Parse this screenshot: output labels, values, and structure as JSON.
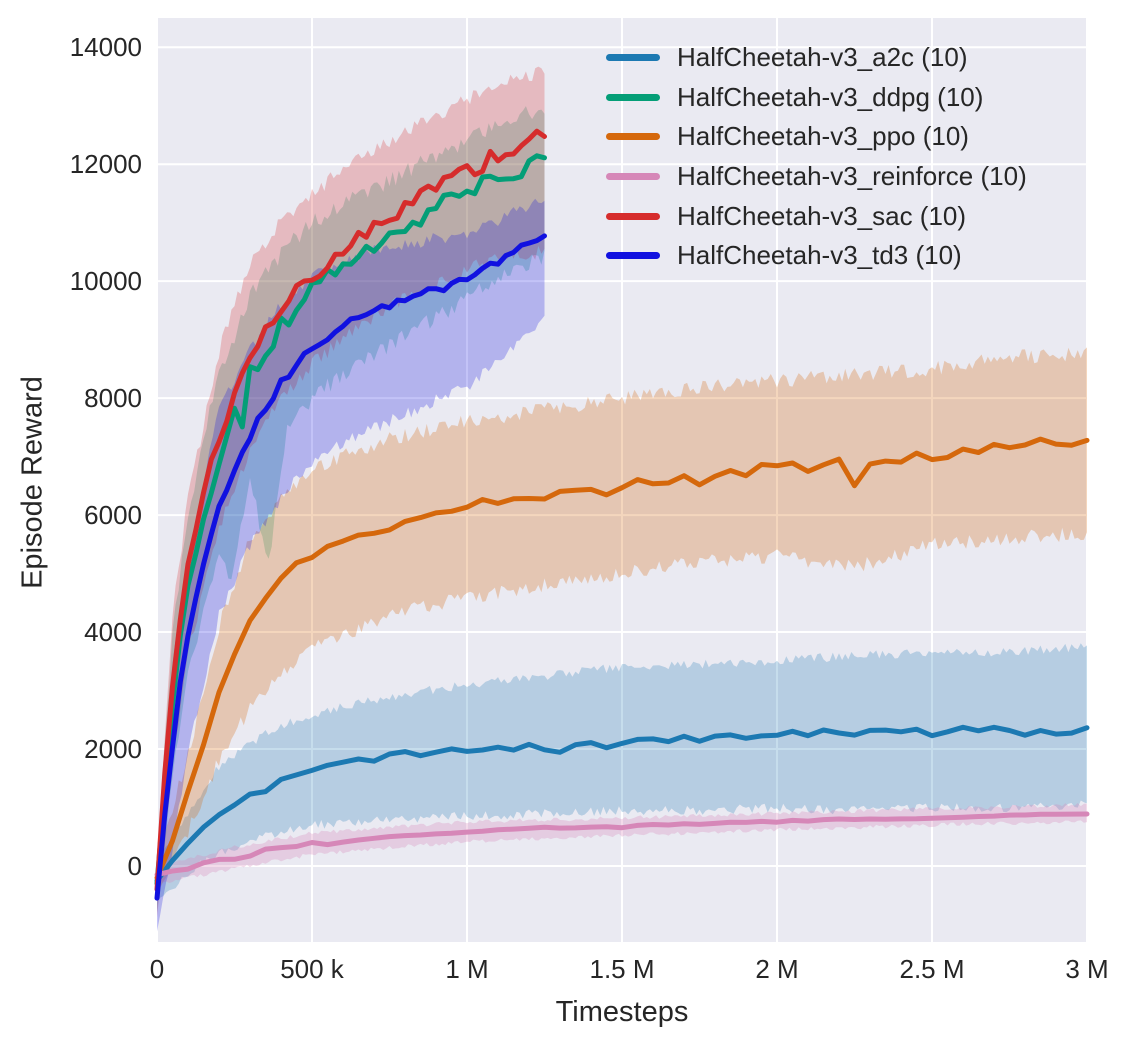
{
  "chart_data": {
    "type": "line",
    "title": "",
    "xlabel": "Timesteps",
    "ylabel": "Episode Reward",
    "x_unit": "thousand timesteps",
    "xlim_k": [
      0,
      3000
    ],
    "ylim": [
      -1300,
      14500
    ],
    "grid": true,
    "legend_position": "upper right",
    "colors": {
      "plot_background": "#eaeaf2",
      "grid": "#ffffff",
      "text": "#262626",
      "figure_background": "#ffffff"
    },
    "x_ticks": {
      "values_k": [
        0,
        500,
        1000,
        1500,
        2000,
        2500,
        3000
      ],
      "labels": [
        "0",
        "500 k",
        "1 M",
        "1.5 M",
        "2 M",
        "2.5 M",
        "3 M"
      ]
    },
    "y_ticks": {
      "values": [
        0,
        2000,
        4000,
        6000,
        8000,
        10000,
        12000,
        14000
      ],
      "labels": [
        "0",
        "2000",
        "4000",
        "6000",
        "8000",
        "10000",
        "12000",
        "14000"
      ]
    },
    "series": [
      {
        "id": "a2c",
        "label": "HalfCheetah-v3_a2c (10)",
        "color": "#1c79b2",
        "band_alpha": 0.25,
        "x_step_k": 50,
        "seed": 1,
        "line_jitter": 30,
        "band_jitter": 160,
        "mean": [
          -250,
          100,
          400,
          650,
          900,
          1050,
          1200,
          1250,
          1500,
          1550,
          1650,
          1750,
          1800,
          1850,
          1800,
          1900,
          1950,
          1900,
          1950,
          2000,
          1950,
          2000,
          2050,
          2000,
          2050,
          2000,
          1950,
          2100,
          2100,
          2050,
          2100,
          2150,
          2150,
          2100,
          2200,
          2150,
          2200,
          2250,
          2200,
          2250,
          2250,
          2300,
          2250,
          2300,
          2300,
          2250,
          2300,
          2350,
          2300,
          2350,
          2250,
          2300,
          2350,
          2300,
          2350,
          2300,
          2250,
          2300,
          2250,
          2300,
          2350
        ],
        "band": {
          "x_k": [
            0,
            100,
            200,
            300,
            400,
            500,
            750,
            1000,
            1250,
            1500,
            1750,
            2000,
            2250,
            2500,
            2750,
            3000
          ],
          "lo": [
            -600,
            -100,
            200,
            400,
            600,
            700,
            800,
            850,
            900,
            950,
            950,
            1000,
            950,
            1000,
            1000,
            1050
          ],
          "hi": [
            100,
            900,
            1700,
            2100,
            2400,
            2600,
            2900,
            3100,
            3250,
            3400,
            3450,
            3500,
            3600,
            3650,
            3650,
            3750
          ]
        }
      },
      {
        "id": "ddpg",
        "label": "HalfCheetah-v3_ddpg (10)",
        "color": "#049e77",
        "band_alpha": 0.25,
        "x_step_k": 25,
        "seed": 2,
        "line_jitter": 150,
        "band_jitter": 280,
        "mean": [
          -300,
          1300,
          2700,
          3900,
          4700,
          5400,
          6000,
          6500,
          7000,
          7300,
          7750,
          7500,
          8400,
          8550,
          8850,
          9000,
          9250,
          9350,
          9550,
          9650,
          9850,
          9950,
          10050,
          10150,
          10250,
          10350,
          10450,
          10500,
          10650,
          10700,
          10800,
          10850,
          10950,
          11050,
          11100,
          11200,
          11250,
          11350,
          11400,
          11500,
          11550,
          11600,
          11650,
          11700,
          11750,
          11800,
          11700,
          11900,
          11950,
          12000,
          12050
        ],
        "band": {
          "x_k": [
            0,
            50,
            100,
            200,
            240,
            300,
            360,
            420,
            500,
            625,
            750,
            875,
            1000,
            1125,
            1250
          ],
          "lo": [
            -800,
            1500,
            3200,
            5400,
            4800,
            6600,
            5200,
            7500,
            8000,
            8500,
            8900,
            9300,
            9700,
            10100,
            10400
          ],
          "hi": [
            200,
            4000,
            6000,
            8500,
            8900,
            9800,
            10200,
            10600,
            11000,
            11400,
            11700,
            12100,
            12400,
            12700,
            13000
          ]
        }
      },
      {
        "id": "ppo",
        "label": "HalfCheetah-v3_ppo (10)",
        "color": "#d5680c",
        "band_alpha": 0.27,
        "x_step_k": 50,
        "seed": 3,
        "line_jitter": 70,
        "band_jitter": 250,
        "mean": [
          -200,
          400,
          1250,
          2100,
          2950,
          3650,
          4200,
          4600,
          4900,
          5150,
          5300,
          5450,
          5550,
          5600,
          5750,
          5800,
          5900,
          6000,
          6100,
          6050,
          6150,
          6200,
          6150,
          6250,
          6300,
          6250,
          6350,
          6400,
          6450,
          6400,
          6500,
          6550,
          6500,
          6600,
          6650,
          6550,
          6700,
          6750,
          6700,
          6800,
          6800,
          6850,
          6800,
          6850,
          6900,
          6550,
          6900,
          6950,
          6950,
          7000,
          7000,
          7050,
          7100,
          7050,
          7150,
          7200,
          7150,
          7250,
          7150,
          7250,
          7250
        ],
        "band": {
          "x_k": [
            0,
            100,
            200,
            300,
            400,
            500,
            750,
            1000,
            1250,
            1500,
            1750,
            2000,
            2250,
            2500,
            2750,
            3000
          ],
          "lo": [
            -500,
            600,
            1800,
            2700,
            3300,
            3700,
            4300,
            4600,
            4800,
            5000,
            5200,
            5300,
            5100,
            5500,
            5600,
            5700
          ],
          "hi": [
            100,
            1900,
            4100,
            5600,
            6300,
            6800,
            7300,
            7600,
            7800,
            8000,
            8200,
            8300,
            8400,
            8500,
            8700,
            8750
          ]
        }
      },
      {
        "id": "reinforce",
        "label": "HalfCheetah-v3_reinforce (10)",
        "color": "#d687b8",
        "band_alpha": 0.3,
        "x_step_k": 50,
        "seed": 4,
        "line_jitter": 15,
        "band_jitter": 70,
        "mean": [
          -150,
          -100,
          -50,
          50,
          100,
          120,
          180,
          300,
          320,
          340,
          390,
          380,
          420,
          450,
          480,
          500,
          510,
          530,
          550,
          570,
          590,
          600,
          610,
          630,
          640,
          650,
          650,
          660,
          660,
          670,
          670,
          690,
          700,
          700,
          710,
          720,
          730,
          740,
          750,
          760,
          760,
          770,
          780,
          780,
          790,
          790,
          800,
          810,
          810,
          820,
          830,
          830,
          840,
          850,
          850,
          860,
          870,
          870,
          880,
          880,
          890
        ],
        "band": {
          "x_k": [
            0,
            250,
            500,
            1000,
            1500,
            2000,
            2500,
            3000
          ],
          "lo": [
            -300,
            -50,
            200,
            420,
            520,
            620,
            700,
            760
          ],
          "hi": [
            0,
            320,
            560,
            760,
            820,
            900,
            980,
            1050
          ]
        }
      },
      {
        "id": "sac",
        "label": "HalfCheetah-v3_sac (10)",
        "color": "#d62c2c",
        "band_alpha": 0.25,
        "x_step_k": 25,
        "seed": 5,
        "line_jitter": 130,
        "band_jitter": 260,
        "mean": [
          -400,
          1600,
          3100,
          4250,
          5050,
          5700,
          6300,
          6850,
          7300,
          7650,
          8050,
          8300,
          8600,
          8800,
          9100,
          9250,
          9500,
          9600,
          9800,
          9900,
          10100,
          10200,
          10350,
          10400,
          10550,
          10600,
          10750,
          10800,
          10950,
          11000,
          11150,
          11200,
          11300,
          11350,
          11450,
          11500,
          11600,
          11650,
          11750,
          11800,
          11900,
          11950,
          12000,
          12100,
          12150,
          12250,
          12300,
          12400,
          12450,
          12500,
          12550
        ],
        "band": {
          "x_k": [
            0,
            50,
            100,
            200,
            300,
            400,
            500,
            625,
            750,
            875,
            1000,
            1125,
            1250
          ],
          "lo": [
            -900,
            1800,
            3600,
            5800,
            7100,
            8000,
            8600,
            9100,
            9600,
            9900,
            10200,
            10400,
            10500
          ],
          "hi": [
            100,
            4300,
            6300,
            8800,
            10300,
            11000,
            11500,
            12000,
            12400,
            12800,
            13100,
            13400,
            13600
          ]
        }
      },
      {
        "id": "td3",
        "label": "HalfCheetah-v3_td3 (10)",
        "color": "#1111e0",
        "band_alpha": 0.25,
        "x_step_k": 25,
        "seed": 6,
        "line_jitter": 70,
        "band_jitter": 220,
        "mean": [
          -550,
          900,
          2100,
          3100,
          3900,
          4600,
          5200,
          5700,
          6100,
          6450,
          6800,
          7100,
          7350,
          7600,
          7850,
          8050,
          8250,
          8400,
          8550,
          8700,
          8800,
          8900,
          9000,
          9100,
          9200,
          9300,
          9350,
          9450,
          9500,
          9550,
          9600,
          9650,
          9700,
          9750,
          9800,
          9850,
          9900,
          9900,
          9950,
          10000,
          10000,
          10100,
          10150,
          10250,
          10300,
          10400,
          10450,
          10550,
          10650,
          10700,
          10800
        ],
        "band": {
          "x_k": [
            0,
            50,
            100,
            200,
            300,
            400,
            500,
            625,
            750,
            875,
            1000,
            1125,
            1250
          ],
          "lo": [
            -1100,
            300,
            1900,
            4300,
            5500,
            6300,
            6900,
            7300,
            7600,
            7900,
            8200,
            8800,
            9400
          ],
          "hi": [
            0,
            3400,
            5300,
            7800,
            8800,
            9600,
            10100,
            10400,
            10600,
            10700,
            10800,
            11100,
            11400
          ]
        }
      }
    ]
  }
}
